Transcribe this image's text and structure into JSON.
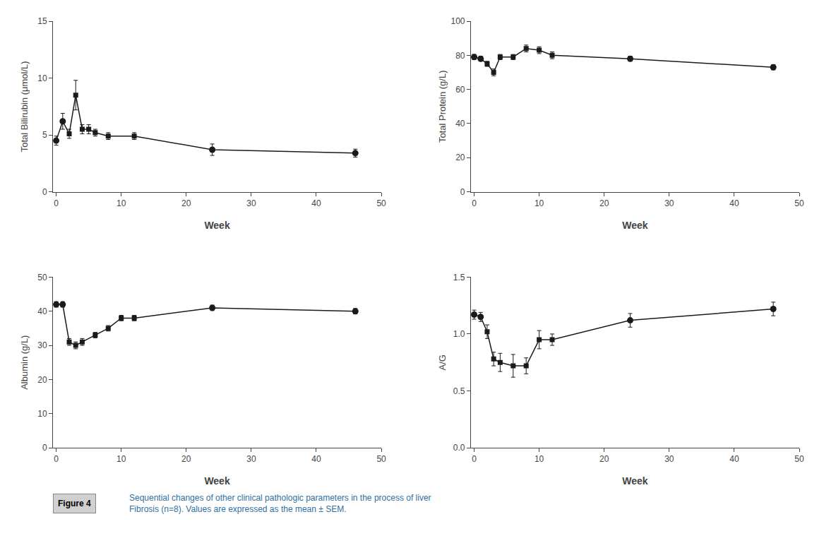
{
  "chart_data": [
    {
      "type": "line",
      "x": [
        0,
        1,
        2,
        3,
        4,
        5,
        6,
        8,
        12,
        24,
        46
      ],
      "xlabel": "Week",
      "ylabel": "Total Bilirubin (μmol/L)",
      "xlim": [
        -0.5,
        50
      ],
      "ylim": [
        0,
        15
      ],
      "xticks": [
        0,
        10,
        20,
        30,
        40,
        50
      ],
      "yticks": [
        0,
        5,
        10,
        15
      ],
      "grid": false,
      "legend": false,
      "series": [
        {
          "type": "line",
          "color": "#1a1a1a",
          "marker": "none",
          "values": [
            4.5,
            6.2,
            5.1,
            8.5,
            5.5,
            5.5,
            5.2,
            4.9,
            4.9,
            3.7,
            3.4
          ]
        },
        {
          "type": "scatter",
          "color": "#1a1a1a",
          "marker": "square",
          "values": [
            null,
            null,
            5.1,
            8.5,
            5.5,
            5.5,
            5.2,
            4.9,
            4.9,
            null,
            null
          ],
          "errors": [
            null,
            null,
            0.4,
            1.3,
            0.4,
            0.4,
            0.3,
            0.3,
            0.3,
            null,
            null
          ]
        },
        {
          "type": "scatter",
          "color": "#1a1a1a",
          "marker": "circle",
          "values": [
            4.5,
            6.2,
            null,
            null,
            null,
            null,
            null,
            null,
            null,
            3.7,
            3.4
          ],
          "errors": [
            0.4,
            0.7,
            null,
            null,
            null,
            null,
            null,
            null,
            null,
            0.5,
            0.35
          ]
        }
      ]
    },
    {
      "type": "line",
      "x": [
        0,
        1,
        2,
        3,
        4,
        6,
        8,
        10,
        12,
        24,
        46
      ],
      "xlabel": "Week",
      "ylabel": "Total Protein (g/L)",
      "xlim": [
        -0.5,
        50
      ],
      "ylim": [
        0,
        100
      ],
      "xticks": [
        0,
        10,
        20,
        30,
        40,
        50
      ],
      "yticks": [
        0,
        20,
        40,
        60,
        80,
        100
      ],
      "grid": false,
      "legend": false,
      "series": [
        {
          "type": "line",
          "color": "#1a1a1a",
          "marker": "none",
          "values": [
            79,
            78,
            75,
            70,
            79,
            79,
            84,
            83,
            80,
            78,
            73
          ]
        },
        {
          "type": "scatter",
          "color": "#1a1a1a",
          "marker": "square",
          "values": [
            null,
            null,
            75,
            70,
            79,
            79,
            84,
            83,
            80,
            null,
            null
          ],
          "errors": [
            null,
            null,
            1.5,
            2.0,
            1.5,
            1.5,
            2.0,
            2.0,
            2.0,
            null,
            null
          ]
        },
        {
          "type": "scatter",
          "color": "#1a1a1a",
          "marker": "circle",
          "values": [
            79,
            78,
            null,
            null,
            null,
            null,
            null,
            null,
            null,
            78,
            73
          ],
          "errors": [
            1.5,
            1.5,
            null,
            null,
            null,
            null,
            null,
            null,
            null,
            1.5,
            1.5
          ]
        }
      ]
    },
    {
      "type": "line",
      "x": [
        0,
        1,
        2,
        3,
        4,
        6,
        8,
        10,
        12,
        24,
        46
      ],
      "xlabel": "Week",
      "ylabel": "Albumin (g/L)",
      "xlim": [
        -0.5,
        50
      ],
      "ylim": [
        0,
        50
      ],
      "xticks": [
        0,
        10,
        20,
        30,
        40,
        50
      ],
      "yticks": [
        0,
        10,
        20,
        30,
        40,
        50
      ],
      "grid": false,
      "legend": false,
      "series": [
        {
          "type": "line",
          "color": "#1a1a1a",
          "marker": "none",
          "values": [
            42,
            42,
            31,
            30,
            31,
            33,
            35,
            38,
            38,
            41,
            40
          ]
        },
        {
          "type": "scatter",
          "color": "#1a1a1a",
          "marker": "square",
          "values": [
            null,
            null,
            31,
            30,
            31,
            33,
            35,
            38,
            38,
            null,
            null
          ],
          "errors": [
            null,
            null,
            1.0,
            1.0,
            1.0,
            0.8,
            0.8,
            0.8,
            0.8,
            null,
            null
          ]
        },
        {
          "type": "scatter",
          "color": "#1a1a1a",
          "marker": "circle",
          "values": [
            42,
            42,
            null,
            null,
            null,
            null,
            null,
            null,
            null,
            41,
            40
          ],
          "errors": [
            0.8,
            0.8,
            null,
            null,
            null,
            null,
            null,
            null,
            null,
            0.8,
            0.8
          ]
        }
      ]
    },
    {
      "type": "line",
      "x": [
        0,
        1,
        2,
        3,
        4,
        6,
        8,
        10,
        12,
        24,
        46
      ],
      "xlabel": "Week",
      "ylabel": "A/G",
      "xlim": [
        -0.5,
        50
      ],
      "ylim": [
        0,
        1.5
      ],
      "xticks": [
        0,
        10,
        20,
        30,
        40,
        50
      ],
      "yticks": [
        {
          "value": 0,
          "label": "0.0"
        },
        0.5,
        {
          "value": 1,
          "label": "1.0"
        },
        1.5
      ],
      "grid": false,
      "legend": false,
      "series": [
        {
          "type": "line",
          "color": "#1a1a1a",
          "marker": "none",
          "values": [
            1.17,
            1.15,
            1.02,
            0.78,
            0.75,
            0.72,
            0.72,
            0.95,
            0.95,
            1.12,
            1.22
          ]
        },
        {
          "type": "scatter",
          "color": "#1a1a1a",
          "marker": "square",
          "values": [
            null,
            null,
            1.02,
            0.78,
            0.75,
            0.72,
            0.72,
            0.95,
            0.95,
            null,
            null
          ],
          "errors": [
            null,
            null,
            0.06,
            0.06,
            0.08,
            0.1,
            0.07,
            0.08,
            0.05,
            null,
            null
          ]
        },
        {
          "type": "scatter",
          "color": "#1a1a1a",
          "marker": "circle",
          "values": [
            1.17,
            1.15,
            null,
            null,
            null,
            null,
            null,
            null,
            null,
            1.12,
            1.22
          ],
          "errors": [
            0.04,
            0.04,
            null,
            null,
            null,
            null,
            null,
            null,
            null,
            0.06,
            0.06
          ]
        }
      ]
    }
  ],
  "annotations": [
    "Figure 4",
    "Sequential changes of other clinical pathologic parameters in the process of liver",
    "Fibrosis (n=8). Values are expressed as the mean ± SEM."
  ]
}
